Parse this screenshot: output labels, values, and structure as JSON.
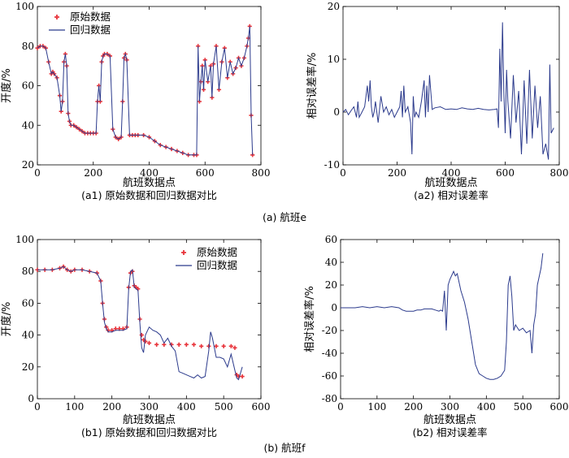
{
  "chart_data": [
    {
      "id": "a1",
      "type": "line",
      "caption": "(a1) 原始数据和回归数据对比",
      "xlabel": "航班数据点",
      "ylabel": "开度/%",
      "xlim": [
        0,
        800
      ],
      "ylim": [
        20,
        100
      ],
      "xticks": [
        0,
        200,
        400,
        600,
        800
      ],
      "yticks": [
        20,
        40,
        60,
        80,
        100
      ],
      "legend": {
        "position": "top-left",
        "entries": [
          "原始数据",
          "回归数据"
        ]
      },
      "series": [
        {
          "name": "原始数据",
          "style": "markers",
          "color": "#e8333a",
          "x": [
            0,
            10,
            20,
            30,
            40,
            50,
            55,
            60,
            70,
            80,
            85,
            90,
            95,
            100,
            105,
            110,
            115,
            120,
            130,
            140,
            150,
            160,
            170,
            180,
            190,
            200,
            210,
            215,
            220,
            225,
            230,
            235,
            240,
            250,
            260,
            270,
            280,
            290,
            300,
            305,
            310,
            315,
            320,
            330,
            340,
            350,
            360,
            380,
            400,
            420,
            440,
            460,
            480,
            500,
            520,
            540,
            560,
            570,
            575,
            580,
            585,
            590,
            595,
            600,
            610,
            620,
            625,
            630,
            640,
            650,
            660,
            670,
            680,
            690,
            700,
            710,
            720,
            730,
            740,
            750,
            755,
            760,
            765,
            770
          ],
          "values": [
            79,
            80,
            80,
            79,
            72,
            66,
            67,
            66,
            64,
            55,
            47,
            52,
            72,
            76,
            70,
            46,
            42,
            40,
            40,
            39,
            38,
            37,
            36,
            36,
            36,
            36,
            36,
            52,
            60,
            52,
            72,
            75,
            76,
            76,
            75,
            38,
            34,
            33,
            34,
            52,
            74,
            76,
            73,
            35,
            35,
            35,
            35,
            35,
            34,
            32,
            30,
            29,
            28,
            27,
            26,
            25,
            25,
            25,
            80,
            52,
            62,
            70,
            58,
            73,
            62,
            70,
            54,
            71,
            80,
            58,
            72,
            79,
            64,
            72,
            66,
            69,
            74,
            70,
            74,
            80,
            84,
            90,
            45,
            25
          ]
        },
        {
          "name": "回归数据",
          "style": "line",
          "color": "#2b3a8c",
          "x": [
            0,
            10,
            20,
            30,
            40,
            50,
            55,
            60,
            70,
            80,
            85,
            90,
            95,
            100,
            105,
            110,
            115,
            120,
            130,
            140,
            150,
            160,
            170,
            180,
            190,
            200,
            210,
            215,
            220,
            225,
            230,
            235,
            240,
            250,
            260,
            270,
            280,
            290,
            300,
            305,
            310,
            315,
            320,
            330,
            340,
            350,
            360,
            380,
            400,
            420,
            440,
            460,
            480,
            500,
            520,
            540,
            560,
            570,
            575,
            580,
            585,
            590,
            595,
            600,
            610,
            620,
            625,
            630,
            640,
            650,
            660,
            670,
            680,
            690,
            700,
            710,
            720,
            730,
            740,
            750,
            755,
            760,
            765,
            770
          ],
          "values": [
            79,
            80,
            80,
            79,
            72,
            66,
            67,
            66,
            64,
            55,
            47,
            52,
            72,
            76,
            70,
            46,
            42,
            40,
            40,
            39,
            38,
            37,
            36,
            36,
            36,
            36,
            36,
            52,
            60,
            52,
            72,
            75,
            76,
            76,
            75,
            38,
            34,
            33,
            34,
            52,
            74,
            76,
            73,
            35,
            35,
            35,
            35,
            35,
            34,
            32,
            30,
            29,
            28,
            27,
            26,
            25,
            25,
            25,
            80,
            52,
            62,
            70,
            58,
            73,
            62,
            70,
            54,
            71,
            80,
            58,
            72,
            79,
            64,
            72,
            66,
            69,
            74,
            70,
            74,
            80,
            84,
            90,
            45,
            25
          ]
        }
      ]
    },
    {
      "id": "a2",
      "type": "line",
      "caption": "(a2) 相对误差率",
      "xlabel": "航班数据点",
      "ylabel": "相对误差率/%",
      "xlim": [
        0,
        800
      ],
      "ylim": [
        -10,
        20
      ],
      "xticks": [
        0,
        200,
        400,
        600,
        800
      ],
      "yticks": [
        -10,
        0,
        10,
        20
      ],
      "series": [
        {
          "name": "",
          "color": "#2b3a8c",
          "x": [
            0,
            10,
            20,
            30,
            40,
            50,
            55,
            60,
            70,
            80,
            90,
            95,
            100,
            105,
            110,
            115,
            120,
            130,
            140,
            150,
            160,
            170,
            180,
            190,
            200,
            210,
            215,
            220,
            225,
            230,
            240,
            250,
            255,
            260,
            265,
            270,
            280,
            290,
            300,
            305,
            310,
            315,
            320,
            330,
            340,
            360,
            380,
            400,
            420,
            440,
            460,
            480,
            500,
            520,
            540,
            560,
            570,
            575,
            580,
            585,
            590,
            595,
            600,
            605,
            610,
            620,
            630,
            640,
            650,
            660,
            670,
            680,
            690,
            700,
            710,
            720,
            730,
            740,
            750,
            760,
            765,
            770,
            780
          ],
          "values": [
            0,
            0.5,
            -0.5,
            0.3,
            1,
            -1,
            2,
            -1,
            0,
            1,
            5,
            2,
            6,
            1,
            -1,
            0,
            2,
            -2,
            3,
            0,
            1,
            -0.5,
            0.5,
            -1,
            0,
            1,
            4,
            -1,
            5,
            0,
            1,
            -2,
            -8,
            3,
            -1,
            0,
            -1,
            2,
            6,
            -1,
            5,
            0,
            7,
            0.5,
            0.8,
            1,
            0.5,
            0.6,
            0.5,
            0.8,
            0.6,
            0.5,
            0.7,
            0.5,
            0.4,
            0.5,
            0.6,
            -3,
            12,
            2,
            17,
            4,
            -4,
            8,
            2,
            -5,
            7,
            -2,
            4,
            -8,
            6,
            -6,
            8,
            -5,
            5,
            -3,
            3,
            -8,
            -6,
            -9,
            9,
            -4,
            -3
          ]
        }
      ]
    },
    {
      "id": "b1",
      "type": "line",
      "caption": "(b1) 原始数据和回归数据对比",
      "xlabel": "航班数据点",
      "ylabel": "开度/%",
      "xlim": [
        0,
        600
      ],
      "ylim": [
        0,
        100
      ],
      "xticks": [
        0,
        100,
        200,
        300,
        400,
        500,
        600
      ],
      "yticks": [
        0,
        20,
        40,
        60,
        80,
        100
      ],
      "legend": {
        "position": "top-right",
        "entries": [
          "原始数据",
          "回归数据"
        ]
      },
      "series": [
        {
          "name": "原始数据",
          "style": "markers",
          "color": "#e8333a",
          "x": [
            0,
            20,
            40,
            60,
            70,
            80,
            90,
            100,
            120,
            140,
            160,
            170,
            175,
            180,
            185,
            190,
            200,
            210,
            220,
            230,
            240,
            245,
            250,
            255,
            260,
            265,
            270,
            275,
            280,
            285,
            290,
            300,
            320,
            340,
            360,
            380,
            400,
            420,
            440,
            460,
            480,
            500,
            520,
            530,
            535,
            540,
            550
          ],
          "values": [
            81,
            81,
            81,
            82,
            83,
            81,
            80,
            81,
            81,
            80,
            79,
            74,
            60,
            50,
            45,
            43,
            43,
            44,
            44,
            44,
            45,
            70,
            79,
            80,
            71,
            70,
            69,
            50,
            40,
            37,
            36,
            35,
            34,
            34,
            34,
            34,
            34,
            34,
            33,
            33,
            33,
            33,
            33,
            32,
            15,
            14,
            14
          ]
        },
        {
          "name": "回归数据",
          "style": "line",
          "color": "#2b3a8c",
          "x": [
            0,
            20,
            40,
            60,
            70,
            80,
            90,
            100,
            120,
            140,
            160,
            170,
            175,
            180,
            185,
            190,
            200,
            210,
            220,
            230,
            240,
            245,
            250,
            255,
            260,
            265,
            270,
            275,
            280,
            285,
            290,
            300,
            310,
            320,
            330,
            340,
            350,
            360,
            370,
            380,
            390,
            400,
            410,
            420,
            430,
            440,
            450,
            460,
            465,
            470,
            480,
            490,
            500,
            510,
            520,
            530,
            535,
            540,
            550
          ],
          "values": [
            81,
            81,
            81,
            82,
            83,
            81,
            80,
            81,
            81,
            80,
            79,
            74,
            60,
            48,
            44,
            42,
            42,
            43,
            43,
            43,
            44,
            69,
            80,
            81,
            70,
            69,
            68,
            48,
            32,
            29,
            40,
            45,
            43,
            42,
            40,
            35,
            38,
            33,
            30,
            17,
            16,
            15,
            14,
            13,
            15,
            13,
            14,
            30,
            42,
            38,
            26,
            26,
            25,
            20,
            28,
            18,
            13,
            12,
            20
          ]
        }
      ]
    },
    {
      "id": "b2",
      "type": "line",
      "caption": "(b2) 相对误差率",
      "xlabel": "航班数据点",
      "ylabel": "相对误差率/%",
      "xlim": [
        0,
        600
      ],
      "ylim": [
        -80,
        60
      ],
      "xticks": [
        0,
        100,
        200,
        300,
        400,
        500,
        600
      ],
      "yticks": [
        -80,
        -60,
        -40,
        -20,
        0,
        20,
        40,
        60
      ],
      "series": [
        {
          "name": "",
          "color": "#2b3a8c",
          "x": [
            0,
            20,
            40,
            60,
            80,
            100,
            120,
            140,
            160,
            170,
            180,
            190,
            200,
            210,
            220,
            230,
            240,
            250,
            260,
            270,
            275,
            280,
            285,
            290,
            295,
            300,
            310,
            315,
            320,
            330,
            340,
            350,
            360,
            370,
            380,
            390,
            400,
            410,
            420,
            430,
            440,
            450,
            455,
            460,
            465,
            470,
            475,
            480,
            490,
            500,
            510,
            520,
            525,
            530,
            535,
            540,
            550,
            555
          ],
          "values": [
            0,
            0,
            0,
            1,
            0,
            1,
            0,
            1,
            0,
            -2,
            -3,
            -3,
            -3,
            -2,
            -2,
            -1,
            -1,
            -1,
            -2,
            -3,
            -2,
            -3,
            15,
            -20,
            20,
            25,
            32,
            28,
            30,
            15,
            5,
            -10,
            -30,
            -50,
            -58,
            -60,
            -62,
            -63,
            -63,
            -62,
            -60,
            -55,
            -30,
            20,
            28,
            10,
            -20,
            -15,
            -20,
            -18,
            -22,
            -20,
            -40,
            -15,
            -5,
            20,
            35,
            48
          ]
        }
      ]
    }
  ],
  "subfigure_labels": [
    "(a) 航班e",
    "(b) 航班f"
  ]
}
